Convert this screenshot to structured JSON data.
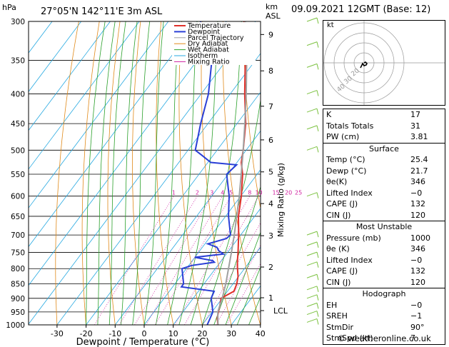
{
  "header": {
    "location": "27°05'N 142°11'E 3m ASL",
    "datetime": "09.09.2021 12GMT (Base: 12)",
    "hpa_label": "hPa",
    "km_label": "km",
    "asl_label": "ASL"
  },
  "legend": [
    {
      "label": "Temperature",
      "color": "#e0302a"
    },
    {
      "label": "Dewpoint",
      "color": "#2a3fd6"
    },
    {
      "label": "Parcel Trajectory",
      "color": "#a0a0a0"
    },
    {
      "label": "Dry Adiabat",
      "color": "#e08a1a"
    },
    {
      "label": "Wet Adiabat",
      "color": "#2aa02a"
    },
    {
      "label": "Isotherm",
      "color": "#27a9e1"
    },
    {
      "label": "Mixing Ratio",
      "color": "#d020a0"
    }
  ],
  "chart_data": {
    "type": "line",
    "xlabel": "Dewpoint / Temperature (°C)",
    "ylabel": "",
    "y2label": "Mixing Ratio (g/kg)",
    "xlim": [
      -35,
      40
    ],
    "ylim": [
      1000,
      300
    ],
    "x_ticks": [
      -30,
      -20,
      -10,
      0,
      10,
      20,
      30,
      40
    ],
    "pressure_levels": [
      300,
      350,
      400,
      450,
      500,
      550,
      600,
      650,
      700,
      750,
      800,
      850,
      900,
      950,
      1000
    ],
    "km_ticks": [
      {
        "label": "1",
        "p": 898
      },
      {
        "label": "2",
        "p": 795
      },
      {
        "label": "3",
        "p": 702
      },
      {
        "label": "4",
        "p": 618
      },
      {
        "label": "5",
        "p": 545
      },
      {
        "label": "6",
        "p": 480
      },
      {
        "label": "7",
        "p": 420
      },
      {
        "label": "8",
        "p": 365
      },
      {
        "label": "9",
        "p": 316
      }
    ],
    "lcl": {
      "label": "LCL",
      "p": 945
    },
    "mixing_ratio_labels": [
      "1",
      "2",
      "3",
      "4",
      "5",
      "8",
      "10",
      "15",
      "20",
      "25"
    ],
    "mixing_ratio_values": [
      1,
      2,
      3,
      4,
      5,
      8,
      10,
      15,
      20,
      25
    ],
    "series": [
      {
        "name": "Temperature",
        "color": "#e0302a",
        "points": [
          [
            1000,
            25.4
          ],
          [
            975,
            23.5
          ],
          [
            950,
            22.2
          ],
          [
            925,
            21.0
          ],
          [
            900,
            19.6
          ],
          [
            875,
            22.2
          ],
          [
            850,
            21.3
          ],
          [
            825,
            19.8
          ],
          [
            800,
            17.6
          ],
          [
            775,
            15.5
          ],
          [
            750,
            13.6
          ],
          [
            725,
            11.5
          ],
          [
            700,
            9.3
          ],
          [
            650,
            4.4
          ],
          [
            600,
            0.2
          ],
          [
            550,
            -5.0
          ],
          [
            525,
            -8.5
          ],
          [
            500,
            -11.0
          ],
          [
            450,
            -17.0
          ],
          [
            400,
            -25.0
          ],
          [
            350,
            -33.5
          ],
          [
            300,
            -44.0
          ]
        ]
      },
      {
        "name": "Dewpoint",
        "color": "#2a3fd6",
        "points": [
          [
            1000,
            21.7
          ],
          [
            975,
            21.0
          ],
          [
            950,
            20.3
          ],
          [
            925,
            18.3
          ],
          [
            900,
            16.2
          ],
          [
            875,
            15.4
          ],
          [
            860,
            3.0
          ],
          [
            850,
            3.0
          ],
          [
            800,
            -1.5
          ],
          [
            790,
            1.0
          ],
          [
            780,
            8.0
          ],
          [
            775,
            7.0
          ],
          [
            765,
            0.0
          ],
          [
            755,
            9.0
          ],
          [
            745,
            6.5
          ],
          [
            735,
            5.0
          ],
          [
            725,
            1.0
          ],
          [
            710,
            6.0
          ],
          [
            700,
            6.5
          ],
          [
            650,
            1.0
          ],
          [
            600,
            -4.0
          ],
          [
            550,
            -10.5
          ],
          [
            530,
            -9.5
          ],
          [
            525,
            -19.0
          ],
          [
            510,
            -24.0
          ],
          [
            500,
            -27.5
          ],
          [
            450,
            -32.5
          ],
          [
            400,
            -37.5
          ],
          [
            350,
            -45.0
          ],
          [
            320,
            -51.0
          ],
          [
            310,
            -55.0
          ],
          [
            300,
            -59.0
          ]
        ]
      },
      {
        "name": "Parcel Trajectory",
        "color": "#a0a0a0",
        "points": [
          [
            1000,
            25.4
          ],
          [
            950,
            22.0
          ],
          [
            900,
            20.0
          ],
          [
            850,
            17.5
          ],
          [
            800,
            14.5
          ],
          [
            750,
            11.3
          ],
          [
            700,
            7.8
          ],
          [
            650,
            3.8
          ],
          [
            600,
            -0.5
          ],
          [
            550,
            -5.5
          ],
          [
            500,
            -11.0
          ],
          [
            450,
            -17.3
          ],
          [
            400,
            -24.5
          ],
          [
            350,
            -33.0
          ],
          [
            300,
            -43.5
          ]
        ]
      }
    ]
  },
  "indices": [
    {
      "label": "K",
      "value": "17"
    },
    {
      "label": "Totals Totals",
      "value": "31"
    },
    {
      "label": "PW (cm)",
      "value": "3.81"
    }
  ],
  "surface": {
    "title": "Surface",
    "rows": [
      {
        "label": "Temp (°C)",
        "value": "25.4"
      },
      {
        "label": "Dewp (°C)",
        "value": "21.7"
      },
      {
        "label": "θe(K)",
        "value": "346"
      },
      {
        "label": "Lifted Index",
        "value": "−0"
      },
      {
        "label": "CAPE (J)",
        "value": "132"
      },
      {
        "label": "CIN (J)",
        "value": "120"
      }
    ]
  },
  "most_unstable": {
    "title": "Most Unstable",
    "rows": [
      {
        "label": "Pressure (mb)",
        "value": "1000"
      },
      {
        "label": "θe (K)",
        "value": "346"
      },
      {
        "label": "Lifted Index",
        "value": "−0"
      },
      {
        "label": "CAPE (J)",
        "value": "132"
      },
      {
        "label": "CIN (J)",
        "value": "120"
      }
    ]
  },
  "hodograph": {
    "title": "Hodograph",
    "kt_label": "kt",
    "ring_labels": [
      "40",
      "30",
      "20"
    ],
    "rows": [
      {
        "label": "EH",
        "value": "−0"
      },
      {
        "label": "SREH",
        "value": "−1"
      },
      {
        "label": "StmDir",
        "value": "90°"
      },
      {
        "label": "StmSpd (kt)",
        "value": "7"
      }
    ]
  },
  "footer": "© weatheronline.co.uk",
  "colors": {
    "isotherm": "#27a9e1",
    "dry_adiabat": "#e08a1a",
    "wet_adiabat": "#2aa02a",
    "mixing_ratio": "#d020a0",
    "wind_barb": "#7dc242"
  }
}
